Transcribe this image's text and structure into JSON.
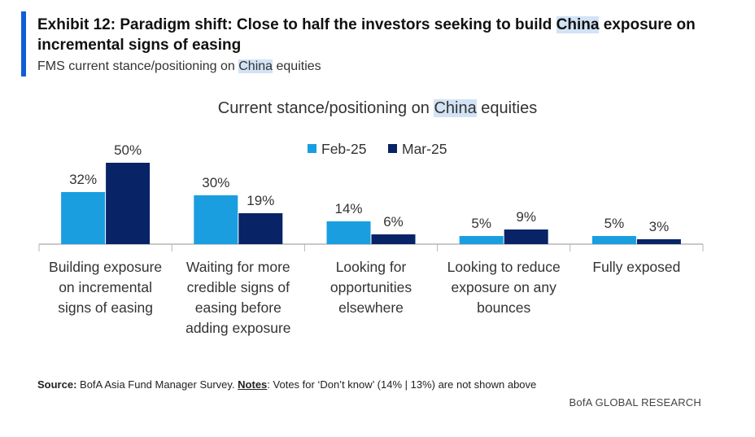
{
  "header": {
    "title_prefix": "Exhibit 12: Paradigm shift: Close to half the investors seeking to build ",
    "title_highlight": "China",
    "title_suffix": " exposure on incremental signs of easing",
    "subtitle_prefix": "FMS current stance/positioning on ",
    "subtitle_highlight": "China",
    "subtitle_suffix": " equities"
  },
  "chart_data": {
    "type": "bar",
    "title_prefix": "Current stance/positioning on ",
    "title_highlight": "China",
    "title_suffix": " equities",
    "categories": [
      [
        "Building exposure",
        "on incremental",
        "signs of easing"
      ],
      [
        "Waiting for more",
        "credible signs of",
        "easing before",
        "adding exposure"
      ],
      [
        "Looking for",
        "opportunities",
        "elsewhere"
      ],
      [
        "Looking to reduce",
        "exposure on any",
        "bounces"
      ],
      [
        "Fully exposed"
      ]
    ],
    "series": [
      {
        "name": "Feb-25",
        "values": [
          32,
          30,
          14,
          5,
          5
        ],
        "color": "#1a9ee0"
      },
      {
        "name": "Mar-25",
        "values": [
          50,
          19,
          6,
          9,
          3
        ],
        "color": "#082466"
      }
    ],
    "value_suffix": "%",
    "ylim": [
      0,
      50
    ],
    "legend_position": "top-center",
    "grid": false
  },
  "footer": {
    "source_label": "Source:",
    "source_text": " BofA Asia Fund Manager Survey. ",
    "notes_label": "Notes",
    "notes_text": ": Votes for ‘Don’t know’ (14% | 13%) are not shown above",
    "brand": "BofA GLOBAL RESEARCH"
  }
}
